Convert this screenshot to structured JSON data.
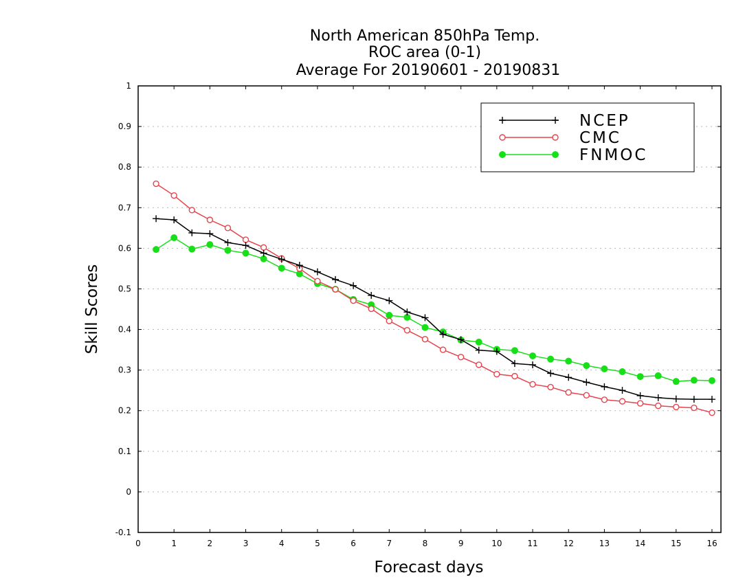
{
  "chart_data": {
    "type": "line",
    "title": [
      "North American 850hPa Temp.",
      "ROC area (0-1)",
      "Average For 20190601 - 20190831"
    ],
    "xlabel": "Forecast days",
    "ylabel": "Skill Scores",
    "xlim": [
      0,
      16.25
    ],
    "ylim": [
      -0.1,
      1
    ],
    "xticks": [
      0,
      1,
      2,
      3,
      4,
      5,
      6,
      7,
      8,
      9,
      10,
      11,
      12,
      13,
      14,
      15,
      16
    ],
    "yticks": [
      -0.1,
      0,
      0.1,
      0.2,
      0.3,
      0.4,
      0.5,
      0.6,
      0.7,
      0.8,
      0.9,
      1
    ],
    "ytick_labels": [
      "-0.1",
      "0",
      "0.1",
      "0.2",
      "0.3",
      "0.4",
      "0.5",
      "0.6",
      "0.7",
      "0.8",
      "0.9",
      "1"
    ],
    "grid": "horizontal-dotted",
    "legend_position": "top-right",
    "x": [
      0.5,
      1,
      1.5,
      2,
      2.5,
      3,
      3.5,
      4,
      4.5,
      5,
      5.5,
      6,
      6.5,
      7,
      7.5,
      8,
      8.5,
      9,
      9.5,
      10,
      10.5,
      11,
      11.5,
      12,
      12.5,
      13,
      13.5,
      14,
      14.5,
      15,
      15.5,
      16
    ],
    "series": [
      {
        "name": "NCEP",
        "color": "#000000",
        "marker": "plus",
        "values": [
          0.673,
          0.67,
          0.638,
          0.636,
          0.614,
          0.607,
          0.588,
          0.573,
          0.558,
          0.542,
          0.523,
          0.508,
          0.484,
          0.471,
          0.443,
          0.429,
          0.388,
          0.375,
          0.349,
          0.346,
          0.316,
          0.313,
          0.292,
          0.282,
          0.27,
          0.259,
          0.25,
          0.237,
          0.232,
          0.229,
          0.228,
          0.228
        ]
      },
      {
        "name": "CMC",
        "color": "#e8424a",
        "marker": "open-circle",
        "values": [
          0.759,
          0.73,
          0.694,
          0.67,
          0.65,
          0.621,
          0.602,
          0.575,
          0.55,
          0.519,
          0.499,
          0.471,
          0.451,
          0.421,
          0.398,
          0.376,
          0.35,
          0.332,
          0.313,
          0.29,
          0.285,
          0.265,
          0.258,
          0.245,
          0.238,
          0.227,
          0.223,
          0.218,
          0.212,
          0.209,
          0.207,
          0.195
        ]
      },
      {
        "name": "FNMOC",
        "color": "#18e018",
        "marker": "filled-circle",
        "values": [
          0.597,
          0.626,
          0.598,
          0.609,
          0.595,
          0.588,
          0.574,
          0.551,
          0.537,
          0.513,
          0.499,
          0.474,
          0.461,
          0.435,
          0.43,
          0.405,
          0.394,
          0.374,
          0.369,
          0.351,
          0.348,
          0.335,
          0.327,
          0.322,
          0.311,
          0.303,
          0.296,
          0.284,
          0.286,
          0.272,
          0.275,
          0.274
        ]
      }
    ]
  }
}
